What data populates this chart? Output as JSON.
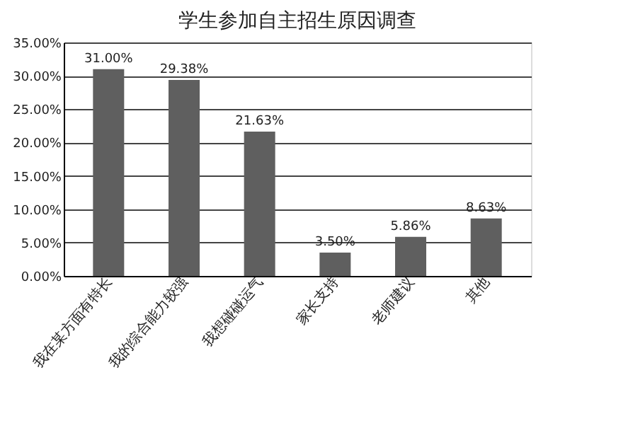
{
  "chart_data": {
    "type": "bar",
    "title": "学生参加自主招生原因调查",
    "categories": [
      "我在某方面有特长",
      "我的综合能力较强",
      "我想碰碰运气",
      "家长支持",
      "老师建议",
      "其他"
    ],
    "values": [
      31.0,
      29.38,
      21.63,
      3.5,
      5.86,
      8.63
    ],
    "value_labels": [
      "31.00%",
      "29.38%",
      "21.63%",
      "3.50%",
      "5.86%",
      "8.63%"
    ],
    "color": "#5f5f5f",
    "ylim": [
      0,
      35
    ],
    "yticks": [
      {
        "value": 0,
        "label": "0.00%"
      },
      {
        "value": 5,
        "label": "5.00%"
      },
      {
        "value": 10,
        "label": "10.00%"
      },
      {
        "value": 15,
        "label": "15.00%"
      },
      {
        "value": 20,
        "label": "20.00%"
      },
      {
        "value": 25,
        "label": "25.00%"
      },
      {
        "value": 30,
        "label": "30.00%"
      },
      {
        "value": 35,
        "label": "35.00%"
      }
    ],
    "grid": "y"
  }
}
